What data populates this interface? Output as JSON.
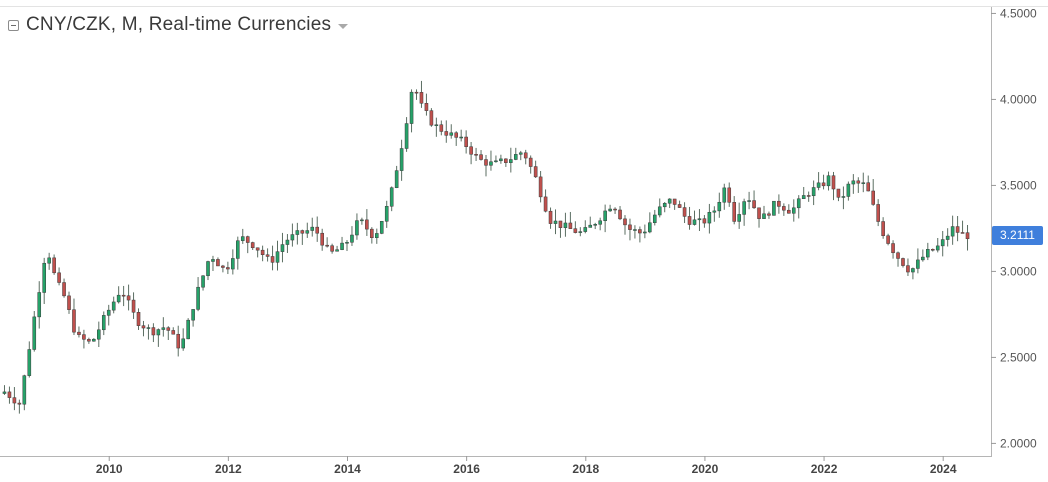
{
  "legend": {
    "title": "CNY/CZK, M, Real-time Currencies",
    "collapse_icon": "collapse-square-icon",
    "menu_icon": "caret-down-icon"
  },
  "colors": {
    "up": "#26a269",
    "down": "#c0504d",
    "axis": "#555555",
    "price_tag": "#3f7fdc"
  },
  "chart_data": {
    "type": "candlestick",
    "title": "CNY/CZK, M, Real-time Currencies",
    "interval": "monthly",
    "grid": false,
    "y_axis": {
      "position": "right",
      "ticks": [
        "2.0000",
        "2.5000",
        "3.0000",
        "3.5000",
        "4.0000",
        "4.5000"
      ],
      "range": [
        1.95,
        4.52
      ]
    },
    "x_axis": {
      "ticks": [
        "2010",
        "2012",
        "2014",
        "2016",
        "2018",
        "2020",
        "2022",
        "2024"
      ],
      "range": [
        2008.2,
        2024.45
      ]
    },
    "last_price": "3.2111",
    "close_series": {
      "x": [
        2008.25,
        2008.5,
        2008.75,
        2008.95,
        2009.1,
        2009.25,
        2009.45,
        2009.7,
        2009.95,
        2010.2,
        2010.45,
        2010.7,
        2010.95,
        2011.2,
        2011.45,
        2011.7,
        2011.95,
        2012.2,
        2012.45,
        2012.7,
        2012.95,
        2013.2,
        2013.45,
        2013.7,
        2013.95,
        2014.2,
        2014.45,
        2014.7,
        2014.95,
        2015.1,
        2015.25,
        2015.45,
        2015.7,
        2015.95,
        2016.2,
        2016.45,
        2016.7,
        2016.95,
        2017.15,
        2017.4,
        2017.7,
        2017.95,
        2018.2,
        2018.45,
        2018.7,
        2018.95,
        2019.2,
        2019.45,
        2019.7,
        2019.95,
        2020.15,
        2020.35,
        2020.5,
        2020.7,
        2020.95,
        2021.2,
        2021.45,
        2021.7,
        2021.95,
        2022.1,
        2022.25,
        2022.45,
        2022.7,
        2022.95,
        2023.2,
        2023.45,
        2023.7,
        2023.95,
        2024.15,
        2024.35
      ],
      "close": [
        2.3,
        2.23,
        2.75,
        3.15,
        2.95,
        2.85,
        2.62,
        2.58,
        2.75,
        2.9,
        2.72,
        2.65,
        2.68,
        2.55,
        2.85,
        3.1,
        3.0,
        3.2,
        3.15,
        3.05,
        3.18,
        3.22,
        3.25,
        3.1,
        3.15,
        3.3,
        3.2,
        3.4,
        3.8,
        4.1,
        3.95,
        3.85,
        3.8,
        3.75,
        3.65,
        3.62,
        3.65,
        3.7,
        3.55,
        3.3,
        3.25,
        3.22,
        3.3,
        3.4,
        3.25,
        3.22,
        3.35,
        3.42,
        3.3,
        3.28,
        3.35,
        3.5,
        3.3,
        3.45,
        3.3,
        3.4,
        3.35,
        3.45,
        3.5,
        3.55,
        3.4,
        3.52,
        3.5,
        3.25,
        3.1,
        3.0,
        3.1,
        3.15,
        3.25,
        3.21
      ]
    }
  }
}
